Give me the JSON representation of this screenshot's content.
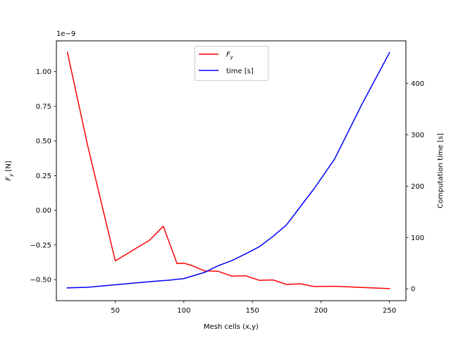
{
  "chart_data": {
    "type": "line",
    "xlabel": "Mesh cells (x,y)",
    "ylabel_left": "F_y [N]",
    "ylabel_right": "Computation time [s]",
    "offset_text": "1e−9",
    "xlim": [
      7,
      262
    ],
    "ylim_left": [
      -0.652,
      1.222
    ],
    "ylim_right": [
      -23,
      483
    ],
    "x_ticks": [
      50,
      100,
      150,
      200,
      250
    ],
    "y_left_ticks": [
      -0.5,
      -0.25,
      0.0,
      0.25,
      0.5,
      0.75,
      1.0
    ],
    "y_left_tick_labels": [
      "−0.50",
      "−0.25",
      "0.00",
      "0.25",
      "0.50",
      "0.75",
      "1.00"
    ],
    "y_right_ticks": [
      0,
      100,
      200,
      300,
      400
    ],
    "legend_position": "upper center",
    "series": [
      {
        "name": "F_y",
        "legend_label": "F",
        "legend_sub": "y",
        "axis": "left",
        "color": "#ff0000",
        "x": [
          15,
          30,
          50,
          75,
          85,
          95,
          100,
          105,
          115,
          125,
          135,
          145,
          155,
          165,
          175,
          185,
          195,
          210,
          250
        ],
        "y": [
          1.14,
          0.46,
          -0.365,
          -0.215,
          -0.115,
          -0.385,
          -0.382,
          -0.395,
          -0.437,
          -0.44,
          -0.475,
          -0.472,
          -0.505,
          -0.502,
          -0.535,
          -0.53,
          -0.55,
          -0.548,
          -0.565
        ]
      },
      {
        "name": "time [s]",
        "legend_label": "time [s]",
        "axis": "right",
        "color": "#0000ff",
        "x": [
          15,
          30,
          50,
          75,
          90,
          100,
          115,
          125,
          135,
          145,
          155,
          165,
          175,
          185,
          195,
          210,
          230,
          250
        ],
        "y": [
          2,
          3,
          8,
          14,
          17,
          20,
          32,
          45,
          55,
          68,
          82,
          102,
          125,
          160,
          195,
          253,
          360,
          460
        ]
      }
    ]
  }
}
